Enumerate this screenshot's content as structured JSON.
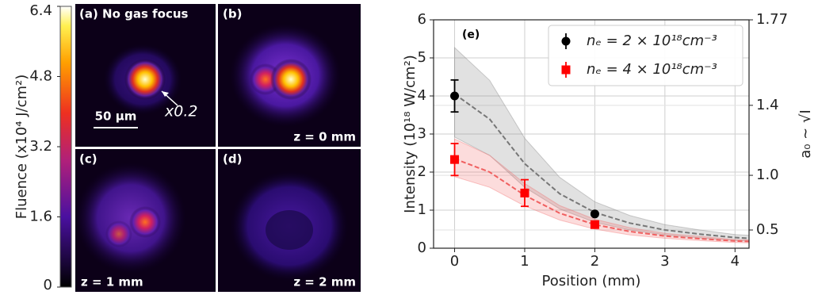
{
  "panels": [
    {
      "label": "(a) No gas focus",
      "scalebar": "50 μm",
      "annotation": "x0.2"
    },
    {
      "label": "(b)",
      "z": "z = 0 mm"
    },
    {
      "label": "(c)",
      "z": "z = 1 mm"
    },
    {
      "label": "(d)",
      "z": "z = 2 mm"
    }
  ],
  "colorbar": {
    "label": "Fluence (x10⁴ J/cm²)",
    "lim": [
      0,
      6.4
    ],
    "ticks": [
      0,
      1.6,
      3.2,
      4.8,
      6.4
    ]
  },
  "chart_data": {
    "type": "errorbar",
    "annotation": "(e)",
    "xlabel": "Position (mm)",
    "ylabel": "Intensity (10¹⁸ W/cm²)",
    "y2label": "a₀ ~ √I",
    "xlim": [
      -0.3,
      4.2
    ],
    "xticks": [
      0,
      1,
      2,
      3,
      4
    ],
    "ylim": [
      0,
      6
    ],
    "yticks": [
      0,
      1,
      2,
      3,
      4,
      5,
      6
    ],
    "y2lim": [
      0,
      1.77
    ],
    "y2_scale": "sqrt",
    "y2ticks": [
      0.5,
      {
        "value": 1,
        "label": "1.0"
      },
      1.4,
      1.77
    ],
    "grid": true,
    "legend": "upper right",
    "series": [
      {
        "name": "nₑ = 2 × 10¹⁸cm⁻³",
        "color": "#000000",
        "marker": "circle",
        "x": [
          0,
          2
        ],
        "values": [
          4.0,
          0.9
        ],
        "errors": [
          0.42,
          0.04
        ]
      },
      {
        "name": "nₑ = 4 × 10¹⁸cm⁻³",
        "color": "#ff0000",
        "marker": "square",
        "x": [
          0,
          1,
          2
        ],
        "values": [
          2.33,
          1.45,
          0.62
        ],
        "errors": [
          0.42,
          0.35,
          0.07
        ]
      }
    ],
    "fit_x": [
      0,
      0.5,
      1,
      1.5,
      2,
      2.5,
      3,
      3.5,
      4,
      4.2
    ],
    "fits": [
      {
        "color": "#777777",
        "values": [
          4.05,
          3.39,
          2.22,
          1.43,
          0.94,
          0.66,
          0.48,
          0.37,
          0.28,
          0.26
        ],
        "upper": [
          5.27,
          4.41,
          2.89,
          1.86,
          1.22,
          0.86,
          0.62,
          0.48,
          0.36,
          0.34
        ],
        "lower": [
          2.92,
          2.44,
          1.6,
          1.03,
          0.68,
          0.48,
          0.35,
          0.27,
          0.2,
          0.19
        ]
      },
      {
        "color": "#f06060",
        "values": [
          2.35,
          2.0,
          1.39,
          0.92,
          0.62,
          0.44,
          0.32,
          0.25,
          0.19,
          0.18
        ],
        "upper": [
          2.87,
          2.44,
          1.7,
          1.12,
          0.76,
          0.54,
          0.39,
          0.31,
          0.23,
          0.22
        ],
        "lower": [
          1.88,
          1.6,
          1.11,
          0.74,
          0.5,
          0.35,
          0.26,
          0.2,
          0.15,
          0.14
        ]
      }
    ]
  }
}
